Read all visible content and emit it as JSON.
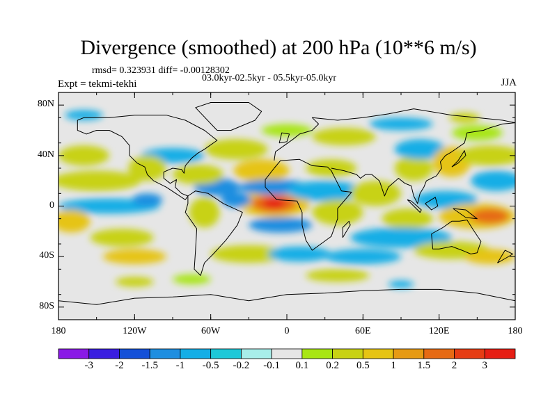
{
  "header": {
    "title": "Divergence (smoothed) at 200 hPa (10**6 m/s)",
    "stats": "rmsd= 0.323931 diff= -0.00128302",
    "subtitle": "03.0kyr-02.5kyr - 05.5kyr-05.0kyr",
    "experiment": "Expt = tekmi-tekhi",
    "season": "JJA"
  },
  "axes": {
    "lat_ticks": [
      {
        "label": "80N",
        "lat": 80
      },
      {
        "label": "40N",
        "lat": 40
      },
      {
        "label": "0",
        "lat": 0
      },
      {
        "label": "40S",
        "lat": -40
      },
      {
        "label": "80S",
        "lat": -80
      }
    ],
    "lon_ticks": [
      {
        "label": "180",
        "lon": -180
      },
      {
        "label": "120W",
        "lon": -120
      },
      {
        "label": "60W",
        "lon": -60
      },
      {
        "label": "0",
        "lon": 0
      },
      {
        "label": "60E",
        "lon": 60
      },
      {
        "label": "120E",
        "lon": 120
      },
      {
        "label": "180",
        "lon": 180
      }
    ],
    "lat_range": [
      -90,
      90
    ],
    "lon_range": [
      -180,
      180
    ]
  },
  "colorbar": {
    "labels": [
      "-3",
      "-2",
      "-1.5",
      "-1",
      "-0.5",
      "-0.2",
      "-0.1",
      "0.1",
      "0.2",
      "0.5",
      "1",
      "1.5",
      "2",
      "3"
    ],
    "colors": [
      "#8a1ae6",
      "#3a1ee0",
      "#1450d8",
      "#1e8ee0",
      "#14aee6",
      "#1ec8d8",
      "#a8eeea",
      "#e6e6e6",
      "#a8e614",
      "#c8d214",
      "#e6c414",
      "#e69a14",
      "#e66a14",
      "#e63c14",
      "#e61e14"
    ]
  },
  "map": {
    "background_color": "#e6e6e6",
    "blobs": [
      {
        "lon": -10,
        "lat": 2,
        "rlon": 28,
        "rlat": 11,
        "c": 1
      },
      {
        "lon": -10,
        "lat": 2,
        "rlon": 18,
        "rlat": 7,
        "c": 2
      },
      {
        "lon": -10,
        "lat": 2,
        "rlon": 9,
        "rlat": 4,
        "c": 3
      },
      {
        "lon": -40,
        "lat": 5,
        "rlon": 12,
        "rlat": 6,
        "c": -1
      },
      {
        "lon": -20,
        "lat": 28,
        "rlon": 22,
        "rlat": 9,
        "c": 1
      },
      {
        "lon": -10,
        "lat": 15,
        "rlon": 28,
        "rlat": 6,
        "c": -1
      },
      {
        "lon": -5,
        "lat": -15,
        "rlon": 25,
        "rlat": 6,
        "c": -1
      },
      {
        "lon": -55,
        "lat": 15,
        "rlon": 18,
        "rlat": 7,
        "c": -1
      },
      {
        "lon": -65,
        "lat": -5,
        "rlon": 12,
        "rlat": 12,
        "c": 0.5
      },
      {
        "lon": 30,
        "lat": 12,
        "rlon": 30,
        "rlat": 8,
        "c": -0.5
      },
      {
        "lon": 40,
        "lat": -5,
        "rlon": 20,
        "rlat": 10,
        "c": 0.5
      },
      {
        "lon": 35,
        "lat": 30,
        "rlon": 20,
        "rlat": 7,
        "c": 0.5
      },
      {
        "lon": 70,
        "lat": 10,
        "rlon": 20,
        "rlat": 10,
        "c": 0.5
      },
      {
        "lon": 95,
        "lat": -10,
        "rlon": 20,
        "rlat": 8,
        "c": 0.5
      },
      {
        "lon": 90,
        "lat": -25,
        "rlon": 40,
        "rlat": 8,
        "c": -0.5
      },
      {
        "lon": 125,
        "lat": 5,
        "rlon": 25,
        "rlat": 7,
        "c": -0.5
      },
      {
        "lon": 150,
        "lat": -8,
        "rlon": 30,
        "rlat": 10,
        "c": 1
      },
      {
        "lon": 160,
        "lat": -8,
        "rlon": 15,
        "rlat": 6,
        "c": 2
      },
      {
        "lon": 100,
        "lat": 30,
        "rlon": 15,
        "rlat": 10,
        "c": 0.5
      },
      {
        "lon": 105,
        "lat": 45,
        "rlon": 20,
        "rlat": 8,
        "c": -0.5
      },
      {
        "lon": 130,
        "lat": 35,
        "rlon": 15,
        "rlat": 12,
        "c": 1
      },
      {
        "lon": 160,
        "lat": 40,
        "rlon": 25,
        "rlat": 8,
        "c": 0.5
      },
      {
        "lon": 165,
        "lat": 20,
        "rlon": 20,
        "rlat": 8,
        "c": -0.5
      },
      {
        "lon": -150,
        "lat": 20,
        "rlon": 35,
        "rlat": 8,
        "c": 0.5
      },
      {
        "lon": -160,
        "lat": 40,
        "rlon": 20,
        "rlat": 8,
        "c": 0.5
      },
      {
        "lon": -140,
        "lat": 0,
        "rlon": 40,
        "rlat": 6,
        "c": -0.5
      },
      {
        "lon": -170,
        "lat": -12,
        "rlon": 15,
        "rlat": 9,
        "c": 1
      },
      {
        "lon": -130,
        "lat": -25,
        "rlon": 25,
        "rlat": 7,
        "c": 0.5
      },
      {
        "lon": -120,
        "lat": -40,
        "rlon": 25,
        "rlat": 6,
        "c": 1
      },
      {
        "lon": -110,
        "lat": 5,
        "rlon": 12,
        "rlat": 5,
        "c": -1
      },
      {
        "lon": -90,
        "lat": 40,
        "rlon": 25,
        "rlat": 6,
        "c": -0.5
      },
      {
        "lon": -110,
        "lat": 30,
        "rlon": 15,
        "rlat": 10,
        "c": 0.5
      },
      {
        "lon": -70,
        "lat": 25,
        "rlon": 20,
        "rlat": 8,
        "c": 0.5
      },
      {
        "lon": -40,
        "lat": 45,
        "rlon": 25,
        "rlat": 8,
        "c": 0.5
      },
      {
        "lon": -30,
        "lat": -38,
        "rlon": 30,
        "rlat": 7,
        "c": 0.5
      },
      {
        "lon": 10,
        "lat": -38,
        "rlon": 25,
        "rlat": 6,
        "c": -0.5
      },
      {
        "lon": 60,
        "lat": -40,
        "rlon": 30,
        "rlat": 6,
        "c": -0.5
      },
      {
        "lon": 130,
        "lat": -35,
        "rlon": 30,
        "rlat": 7,
        "c": 0.5
      },
      {
        "lon": 160,
        "lat": -40,
        "rlon": 20,
        "rlat": 6,
        "c": 1
      },
      {
        "lon": 45,
        "lat": 55,
        "rlon": 25,
        "rlat": 7,
        "c": 0.5
      },
      {
        "lon": 90,
        "lat": 65,
        "rlon": 25,
        "rlat": 5,
        "c": -0.5
      },
      {
        "lon": -160,
        "lat": 72,
        "rlon": 15,
        "rlat": 4,
        "c": -0.5
      },
      {
        "lon": 140,
        "lat": 70,
        "rlon": 12,
        "rlat": 4,
        "c": 0.5
      },
      {
        "lon": 40,
        "lat": -55,
        "rlon": 25,
        "rlat": 5,
        "c": 0.5
      },
      {
        "lon": -120,
        "lat": -60,
        "rlon": 15,
        "rlat": 4,
        "c": 0.5
      },
      {
        "lon": 90,
        "lat": -62,
        "rlon": 10,
        "rlat": 3,
        "c": -0.5
      },
      {
        "lon": 150,
        "lat": 58,
        "rlon": 20,
        "rlat": 6,
        "c": 0.2
      },
      {
        "lon": 0,
        "lat": 60,
        "rlon": 20,
        "rlat": 5,
        "c": 0.2
      },
      {
        "lon": -75,
        "lat": -58,
        "rlon": 15,
        "rlat": 4,
        "c": 0.2
      }
    ],
    "coastlines": [
      [
        [
          -165,
          68
        ],
        [
          -160,
          70
        ],
        [
          -140,
          70
        ],
        [
          -120,
          72
        ],
        [
          -95,
          72
        ],
        [
          -80,
          68
        ],
        [
          -65,
          60
        ],
        [
          -55,
          52
        ],
        [
          -65,
          45
        ],
        [
          -70,
          42
        ],
        [
          -75,
          38
        ],
        [
          -80,
          32
        ],
        [
          -81,
          26
        ],
        [
          -83,
          29
        ],
        [
          -90,
          30
        ],
        [
          -97,
          27
        ],
        [
          -97,
          22
        ],
        [
          -92,
          18
        ],
        [
          -87,
          21
        ],
        [
          -88,
          15
        ],
        [
          -83,
          10
        ],
        [
          -78,
          8
        ],
        [
          -80,
          5
        ],
        [
          -95,
          15
        ],
        [
          -105,
          20
        ],
        [
          -110,
          25
        ],
        [
          -112,
          31
        ],
        [
          -118,
          34
        ],
        [
          -124,
          40
        ],
        [
          -124,
          48
        ],
        [
          -130,
          55
        ],
        [
          -140,
          60
        ],
        [
          -150,
          60
        ],
        [
          -158,
          57
        ],
        [
          -165,
          60
        ],
        [
          -165,
          68
        ]
      ],
      [
        [
          -78,
          8
        ],
        [
          -72,
          12
        ],
        [
          -62,
          10
        ],
        [
          -50,
          2
        ],
        [
          -35,
          -5
        ],
        [
          -39,
          -15
        ],
        [
          -48,
          -27
        ],
        [
          -58,
          -38
        ],
        [
          -65,
          -45
        ],
        [
          -68,
          -55
        ],
        [
          -73,
          -50
        ],
        [
          -72,
          -35
        ],
        [
          -71,
          -18
        ],
        [
          -80,
          -5
        ],
        [
          -78,
          2
        ],
        [
          -78,
          8
        ]
      ],
      [
        [
          -17,
          15
        ],
        [
          -17,
          21
        ],
        [
          -10,
          30
        ],
        [
          -5,
          36
        ],
        [
          10,
          37
        ],
        [
          20,
          32
        ],
        [
          32,
          31
        ],
        [
          35,
          28
        ],
        [
          43,
          12
        ],
        [
          51,
          11
        ],
        [
          40,
          -2
        ],
        [
          40,
          -10
        ],
        [
          35,
          -24
        ],
        [
          20,
          -35
        ],
        [
          15,
          -27
        ],
        [
          12,
          -15
        ],
        [
          12,
          -5
        ],
        [
          8,
          4
        ],
        [
          -8,
          5
        ],
        [
          -17,
          15
        ]
      ],
      [
        [
          -10,
          36
        ],
        [
          -9,
          43
        ],
        [
          -2,
          48
        ],
        [
          5,
          53
        ],
        [
          10,
          57
        ],
        [
          20,
          60
        ],
        [
          25,
          65
        ],
        [
          20,
          70
        ],
        [
          40,
          68
        ],
        [
          60,
          70
        ],
        [
          80,
          73
        ],
        [
          100,
          77
        ],
        [
          130,
          72
        ],
        [
          150,
          70
        ],
        [
          170,
          68
        ],
        [
          180,
          66
        ]
      ],
      [
        [
          35,
          30
        ],
        [
          45,
          28
        ],
        [
          55,
          25
        ],
        [
          58,
          22
        ],
        [
          62,
          25
        ],
        [
          67,
          25
        ],
        [
          73,
          20
        ],
        [
          77,
          8
        ],
        [
          80,
          15
        ],
        [
          88,
          22
        ],
        [
          93,
          18
        ],
        [
          98,
          16
        ],
        [
          100,
          8
        ],
        [
          103,
          2
        ],
        [
          105,
          10
        ],
        [
          108,
          15
        ],
        [
          110,
          20
        ],
        [
          118,
          24
        ],
        [
          122,
          30
        ],
        [
          121,
          35
        ],
        [
          125,
          40
        ],
        [
          130,
          43
        ],
        [
          140,
          50
        ],
        [
          142,
          58
        ],
        [
          155,
          60
        ],
        [
          160,
          62
        ],
        [
          170,
          65
        ],
        [
          180,
          66
        ]
      ],
      [
        [
          114,
          -22
        ],
        [
          115,
          -34
        ],
        [
          120,
          -34
        ],
        [
          130,
          -32
        ],
        [
          138,
          -35
        ],
        [
          145,
          -38
        ],
        [
          150,
          -37
        ],
        [
          153,
          -28
        ],
        [
          147,
          -19
        ],
        [
          142,
          -11
        ],
        [
          136,
          -12
        ],
        [
          130,
          -12
        ],
        [
          123,
          -17
        ],
        [
          114,
          -22
        ]
      ],
      [
        [
          -180,
          -75
        ],
        [
          -150,
          -78
        ],
        [
          -120,
          -73
        ],
        [
          -90,
          -72
        ],
        [
          -60,
          -70
        ],
        [
          -30,
          -75
        ],
        [
          0,
          -70
        ],
        [
          30,
          -69
        ],
        [
          60,
          -67
        ],
        [
          90,
          -66
        ],
        [
          120,
          -66
        ],
        [
          150,
          -69
        ],
        [
          180,
          -75
        ]
      ],
      [
        [
          -55,
          60
        ],
        [
          -44,
          60
        ],
        [
          -25,
          68
        ],
        [
          -20,
          75
        ],
        [
          -30,
          82
        ],
        [
          -60,
          82
        ],
        [
          -72,
          78
        ],
        [
          -55,
          60
        ]
      ],
      [
        [
          -6,
          50
        ],
        [
          0,
          51
        ],
        [
          2,
          57
        ],
        [
          -4,
          58
        ],
        [
          -6,
          50
        ]
      ],
      [
        [
          44,
          -25
        ],
        [
          50,
          -15
        ],
        [
          49,
          -12
        ],
        [
          44,
          -17
        ],
        [
          44,
          -25
        ]
      ],
      [
        [
          95,
          5
        ],
        [
          105,
          -5
        ],
        [
          106,
          -3
        ],
        [
          98,
          4
        ],
        [
          95,
          5
        ]
      ],
      [
        [
          130,
          31
        ],
        [
          135,
          34
        ],
        [
          141,
          40
        ],
        [
          140,
          44
        ],
        [
          135,
          36
        ],
        [
          130,
          31
        ]
      ],
      [
        [
          131,
          -2
        ],
        [
          141,
          -3
        ],
        [
          150,
          -10
        ],
        [
          141,
          -9
        ],
        [
          131,
          -2
        ]
      ],
      [
        [
          109,
          2
        ],
        [
          117,
          7
        ],
        [
          119,
          0
        ],
        [
          114,
          -3
        ],
        [
          109,
          2
        ]
      ],
      [
        [
          166,
          -45
        ],
        [
          173,
          -41
        ],
        [
          178,
          -38
        ],
        [
          172,
          -35
        ],
        [
          166,
          -45
        ]
      ]
    ]
  }
}
